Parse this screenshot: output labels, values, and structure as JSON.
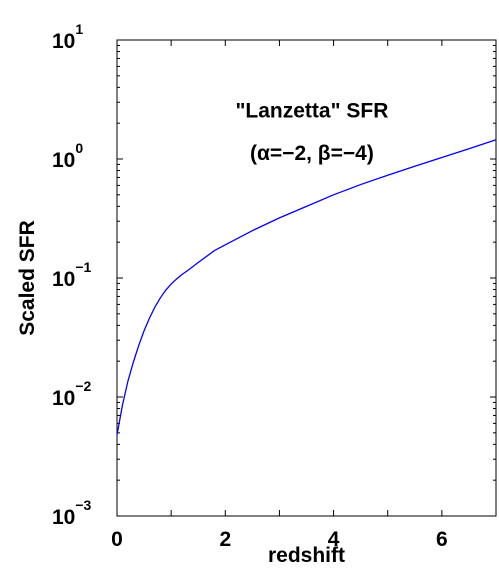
{
  "chart_data": {
    "type": "line",
    "title": "",
    "xlabel": "redshift",
    "ylabel": "Scaled SFR",
    "xlim": [
      0,
      7
    ],
    "ylim": [
      0.001,
      10
    ],
    "yscale": "log",
    "grid": false,
    "x_ticks": [
      {
        "value": 0,
        "label": "0"
      },
      {
        "value": 2,
        "label": "2"
      },
      {
        "value": 4,
        "label": "4"
      },
      {
        "value": 6,
        "label": "6"
      }
    ],
    "y_ticks": [
      {
        "value": 0.001,
        "base": "10",
        "exp": "−3"
      },
      {
        "value": 0.01,
        "base": "10",
        "exp": "−2"
      },
      {
        "value": 0.1,
        "base": "10",
        "exp": "−1"
      },
      {
        "value": 1,
        "base": "10",
        "exp": "0"
      },
      {
        "value": 10,
        "base": "10",
        "exp": "1"
      }
    ],
    "annotation": {
      "line1": "\"Lanzetta\" SFR",
      "line2": "(α=−2, β=−4)",
      "x": 3.6,
      "y1": 2.6,
      "y2": 1.15
    },
    "series": [
      {
        "color": "#0000ff",
        "x": [
          0,
          0.1,
          0.2,
          0.3,
          0.4,
          0.5,
          0.6,
          0.7,
          0.8,
          0.9,
          1.0,
          1.1,
          1.2,
          1.3,
          1.5,
          1.8,
          2.0,
          2.5,
          3.0,
          3.5,
          4.0,
          4.5,
          5.0,
          5.5,
          6.0,
          6.5,
          7.0
        ],
        "y": [
          0.0048,
          0.0085,
          0.0135,
          0.0195,
          0.027,
          0.036,
          0.046,
          0.057,
          0.068,
          0.079,
          0.089,
          0.098,
          0.107,
          0.115,
          0.135,
          0.17,
          0.19,
          0.25,
          0.32,
          0.4,
          0.5,
          0.61,
          0.73,
          0.87,
          1.03,
          1.22,
          1.45
        ]
      }
    ]
  }
}
